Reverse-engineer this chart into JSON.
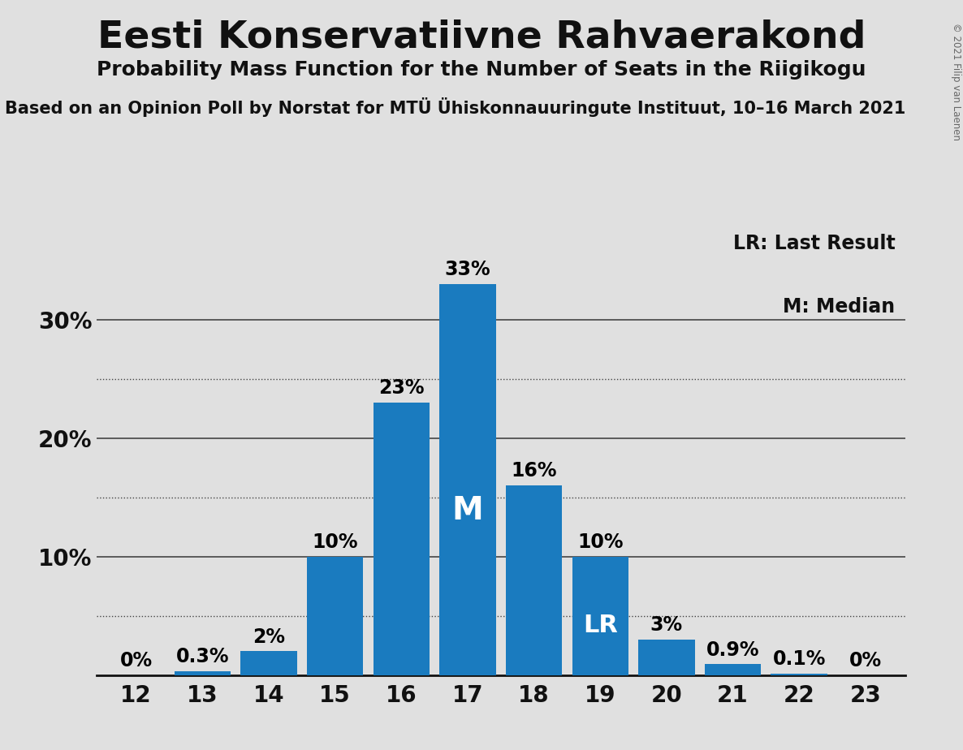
{
  "title": "Eesti Konservatiivne Rahvaerakond",
  "subtitle": "Probability Mass Function for the Number of Seats in the Riigikogu",
  "source_line": "Based on an Opinion Poll by Norstat for MTÜ Ühiskonnauuringute Instituut, 10–16 March 2021",
  "copyright": "© 2021 Filip van Laenen",
  "categories": [
    12,
    13,
    14,
    15,
    16,
    17,
    18,
    19,
    20,
    21,
    22,
    23
  ],
  "values": [
    0.0,
    0.3,
    2.0,
    10.0,
    23.0,
    33.0,
    16.0,
    10.0,
    3.0,
    0.9,
    0.1,
    0.0
  ],
  "bar_color": "#1a7bbf",
  "background_color": "#e0e0e0",
  "title_fontsize": 34,
  "subtitle_fontsize": 18,
  "source_fontsize": 15,
  "bar_label_fontsize": 17,
  "tick_fontsize": 20,
  "yticks": [
    10,
    20,
    30
  ],
  "ylim": [
    0,
    38
  ],
  "median_seat": 17,
  "last_result_seat": 19,
  "legend_text_lr": "LR: Last Result",
  "legend_text_m": "M: Median",
  "grid_color": "#444444",
  "dotted_grid_levels": [
    5,
    15,
    25
  ],
  "solid_grid_levels": [
    10,
    20,
    30
  ]
}
